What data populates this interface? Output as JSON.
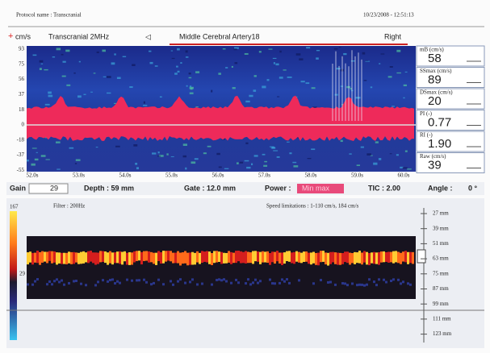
{
  "header": {
    "protocol": "Protocol name : Transcranial",
    "datetime": "10/23/2008 - 12:51:13"
  },
  "toolbar": {
    "unit": "cm/s",
    "probe": "Transcranial 2MHz",
    "vessel": "Middle Cerebral Artery18",
    "side": "Right"
  },
  "spectrum": {
    "velocity_labels": [
      "93",
      "75",
      "56",
      "37",
      "18",
      "0",
      "-18",
      "-37",
      "-55"
    ],
    "time_labels": [
      "52.0s",
      "53.0s",
      "54.0s",
      "55.0s",
      "56.0s",
      "57.0s",
      "58.0s",
      "59.0s",
      "60.0s"
    ]
  },
  "measurements": [
    {
      "label": "mB (cm/s)",
      "value": "58"
    },
    {
      "label": "SSmax (cm/s)",
      "value": "89"
    },
    {
      "label": "DSmax (cm/s)",
      "value": "20"
    },
    {
      "label": "PI (-)",
      "value": "0.77"
    },
    {
      "label": "RI (-)",
      "value": "1.90"
    },
    {
      "label": "Raw (cm/s)",
      "value": "39"
    }
  ],
  "controls": {
    "gain_label": "Gain",
    "gain_value": "29",
    "depth": "Depth : 59 mm",
    "gate": "Gate : 12.0 mm",
    "power_label": "Power :",
    "power_value": "Min max",
    "tic": "TIC : 2.00",
    "angle_label": "Angle :",
    "angle_value": "0 °"
  },
  "mmode": {
    "filter": "Filter : 200Hz",
    "speed": "Speed limitations : 1-110 cm/s, 184 cm/s",
    "scale_labels": [
      "167",
      "29"
    ],
    "depth_labels": [
      "27 mm",
      "39 mm",
      "51 mm",
      "63 mm",
      "75 mm",
      "87 mm",
      "99 mm",
      "111 mm",
      "123 mm"
    ]
  }
}
